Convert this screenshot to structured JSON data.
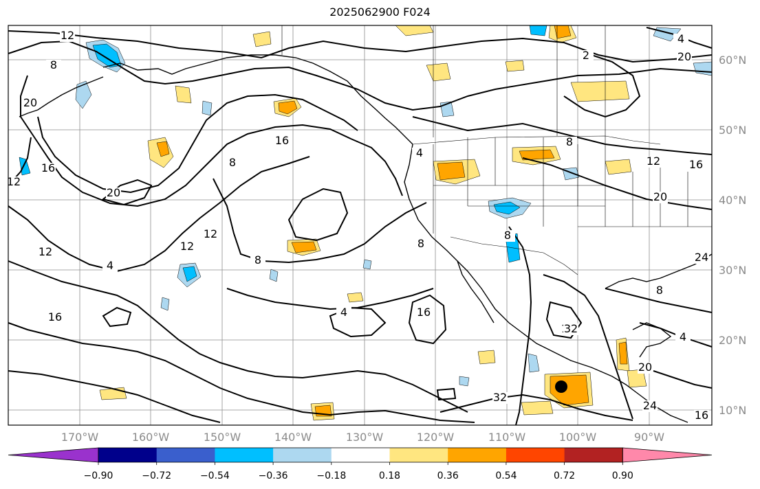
{
  "title": "2025062900 F024",
  "map": {
    "lon_labels": [
      "170°W",
      "160°W",
      "150°W",
      "140°W",
      "130°W",
      "120°W",
      "110°W",
      "100°W",
      "90°W"
    ],
    "lat_labels": [
      "60°N",
      "50°N",
      "40°N",
      "30°N",
      "20°N",
      "10°N"
    ],
    "contour_labels": [
      "12",
      "8",
      "20",
      "16",
      "20",
      "4",
      "12",
      "16",
      "12",
      "8",
      "4",
      "16",
      "8",
      "12",
      "12",
      "4",
      "8",
      "20",
      "20",
      "24",
      "32",
      "32",
      "24",
      "16",
      "16",
      "8",
      "4",
      "2",
      "20",
      "4",
      "8",
      "12",
      "8",
      "12",
      "16"
    ]
  },
  "colorbar": {
    "tick_labels": [
      "−0.90",
      "−0.72",
      "−0.54",
      "−0.36",
      "−0.18",
      "0.18",
      "0.36",
      "0.54",
      "0.72",
      "0.90"
    ],
    "colors": [
      "#9a32cd",
      "#00008b",
      "#3a5fcd",
      "#00bfff",
      "#add8f0",
      "#ffffff",
      "#ffe680",
      "#ffa500",
      "#ff4500",
      "#b22222",
      "#ff88aa"
    ]
  }
}
